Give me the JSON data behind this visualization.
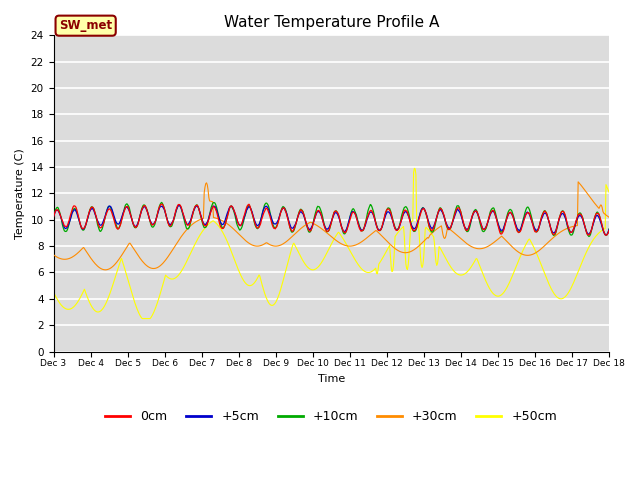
{
  "title": "Water Temperature Profile A",
  "xlabel": "Time",
  "ylabel": "Temperature (C)",
  "ylim": [
    0,
    24
  ],
  "yticks": [
    0,
    2,
    4,
    6,
    8,
    10,
    12,
    14,
    16,
    18,
    20,
    22,
    24
  ],
  "annotation_text": "SW_met",
  "annotation_color": "#8B0000",
  "annotation_bg": "#FFFFAA",
  "bg_color": "#DCDCDC",
  "legend_entries": [
    "0cm",
    "+5cm",
    "+10cm",
    "+30cm",
    "+50cm"
  ],
  "legend_colors": [
    "#FF0000",
    "#0000CC",
    "#00AA00",
    "#FF8C00",
    "#FFFF00"
  ],
  "x_tick_labels": [
    "Dec 3",
    "Dec 4",
    "Dec 5",
    "Dec 6",
    "Dec 7",
    "Dec 8",
    "Dec 9",
    "Dec 10",
    "Dec 11",
    "Dec 12",
    "Dec 13",
    "Dec 14",
    "Dec 15",
    "Dec 16",
    "Dec 17",
    "Dec 18"
  ],
  "num_points": 720
}
